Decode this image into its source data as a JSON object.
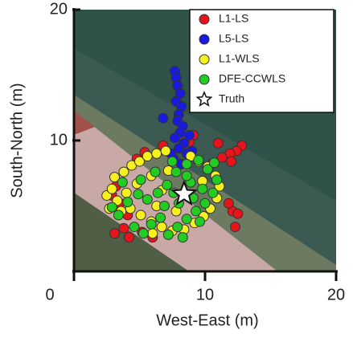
{
  "chart_data": {
    "type": "scatter",
    "x_label": "West-East (m)",
    "y_label": "South-North (m)",
    "xlim": [
      0,
      20
    ],
    "ylim": [
      0,
      20
    ],
    "xticks": [
      0,
      10,
      20
    ],
    "yticks": [
      10,
      20
    ],
    "legend_position": "upper right",
    "series": [
      {
        "name": "L1-LS",
        "color": "#e8141c",
        "marker": "circle",
        "x": [
          3.1,
          3.8,
          4.2,
          5.2,
          12.3,
          12.1,
          12.5,
          11.8,
          12.8,
          12.4,
          11.9,
          11.3,
          9.1,
          8.8,
          4.8,
          5.4,
          3.2,
          3.5,
          6.0,
          11.0,
          10.5,
          2.9,
          6.8,
          12.0,
          4.1
        ],
        "values": [
          2.9,
          3.3,
          2.6,
          3.0,
          3.4,
          4.6,
          4.4,
          5.2,
          9.6,
          9.2,
          9.0,
          8.7,
          10.4,
          9.9,
          8.6,
          9.1,
          6.5,
          5.2,
          2.6,
          9.8,
          8.2,
          5.8,
          9.6,
          8.4,
          4.3
        ]
      },
      {
        "name": "L5-LS",
        "color": "#1a1adf",
        "marker": "circle",
        "x": [
          7.7,
          7.8,
          7.9,
          8.1,
          7.8,
          8.2,
          8.0,
          7.9,
          8.3,
          8.1,
          7.7,
          8.4,
          8.0,
          8.6,
          6.8,
          8.8,
          7.6,
          8.2,
          9.0,
          7.4
        ],
        "values": [
          15.3,
          14.8,
          14.2,
          13.6,
          13.0,
          12.6,
          12.0,
          11.5,
          11.1,
          10.6,
          10.2,
          9.8,
          9.4,
          9.0,
          11.7,
          10.4,
          8.6,
          8.2,
          9.2,
          9.0
        ]
      },
      {
        "name": "L1-WLS",
        "color": "#f5f01e",
        "marker": "circle",
        "x": [
          2.5,
          2.9,
          3.3,
          3.1,
          3.8,
          4.4,
          5.0,
          5.6,
          6.3,
          7.0,
          8.9,
          9.5,
          10.2,
          10.8,
          11.1,
          10.9,
          10.4,
          9.9,
          9.2,
          8.4,
          7.5,
          6.7,
          5.9,
          5.1,
          4.3,
          3.6,
          4.8,
          5.9,
          6.7,
          7.2,
          9.8,
          6.3,
          4.0,
          2.7,
          7.8,
          6.0
        ],
        "values": [
          5.8,
          6.3,
          5.4,
          7.2,
          7.6,
          8.1,
          8.4,
          8.8,
          9.0,
          9.2,
          8.8,
          8.4,
          8.0,
          7.3,
          6.5,
          5.6,
          4.8,
          4.2,
          3.7,
          3.2,
          3.1,
          3.4,
          3.8,
          4.3,
          4.8,
          4.6,
          6.7,
          7.3,
          6.2,
          7.7,
          6.9,
          5.0,
          6.0,
          4.8,
          4.6,
          2.9
        ]
      },
      {
        "name": "DFE-CCWLS",
        "color": "#22cc22",
        "marker": "circle",
        "x": [
          2.9,
          3.4,
          4.1,
          4.6,
          5.3,
          5.9,
          6.6,
          7.2,
          7.9,
          8.6,
          9.3,
          10.0,
          10.6,
          10.9,
          10.2,
          9.5,
          8.6,
          7.8,
          7.1,
          6.4,
          5.6,
          4.9,
          9.1,
          8.0,
          8.9,
          9.8,
          7.5,
          6.2,
          3.7,
          8.3,
          6.9,
          9.6,
          10.7,
          5.1,
          8.6,
          7.6
        ],
        "values": [
          4.9,
          4.3,
          5.3,
          3.4,
          2.9,
          3.6,
          4.1,
          2.8,
          3.4,
          4.0,
          4.6,
          5.2,
          6.0,
          7.0,
          7.8,
          8.5,
          8.2,
          7.6,
          6.6,
          6.0,
          5.5,
          5.9,
          5.6,
          5.2,
          6.8,
          6.3,
          8.4,
          7.6,
          6.8,
          2.6,
          5.0,
          3.8,
          8.3,
          7.0,
          7.3,
          6.0
        ]
      },
      {
        "name": "Truth",
        "color": "#ffffff",
        "marker": "star",
        "x": [
          8.4
        ],
        "values": [
          5.9
        ]
      }
    ]
  }
}
